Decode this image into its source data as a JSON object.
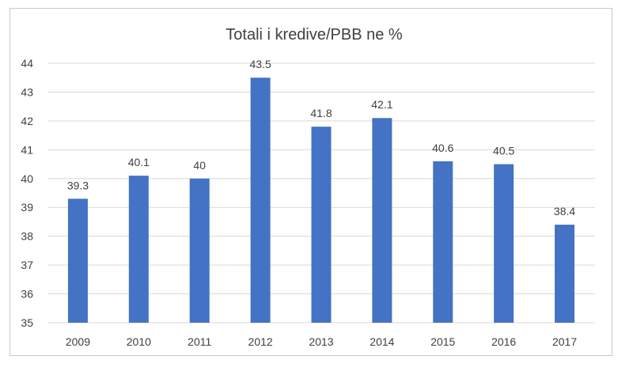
{
  "chart_data": {
    "type": "bar",
    "title": "Totali i kredive/PBB ne %",
    "xlabel": "",
    "ylabel": "",
    "categories": [
      "2009",
      "2010",
      "2011",
      "2012",
      "2013",
      "2014",
      "2015",
      "2016",
      "2017"
    ],
    "values": [
      39.3,
      40.1,
      40,
      43.5,
      41.8,
      42.1,
      40.6,
      40.5,
      38.4
    ],
    "value_labels": [
      "39.3",
      "40.1",
      "40",
      "43.5",
      "41.8",
      "42.1",
      "40.6",
      "40.5",
      "38.4"
    ],
    "ylim": [
      35,
      44
    ],
    "yticks": [
      "35",
      "36",
      "37",
      "38",
      "39",
      "40",
      "41",
      "42",
      "43",
      "44"
    ],
    "grid": true,
    "legend": "none",
    "bar_color": "#4472c4"
  }
}
